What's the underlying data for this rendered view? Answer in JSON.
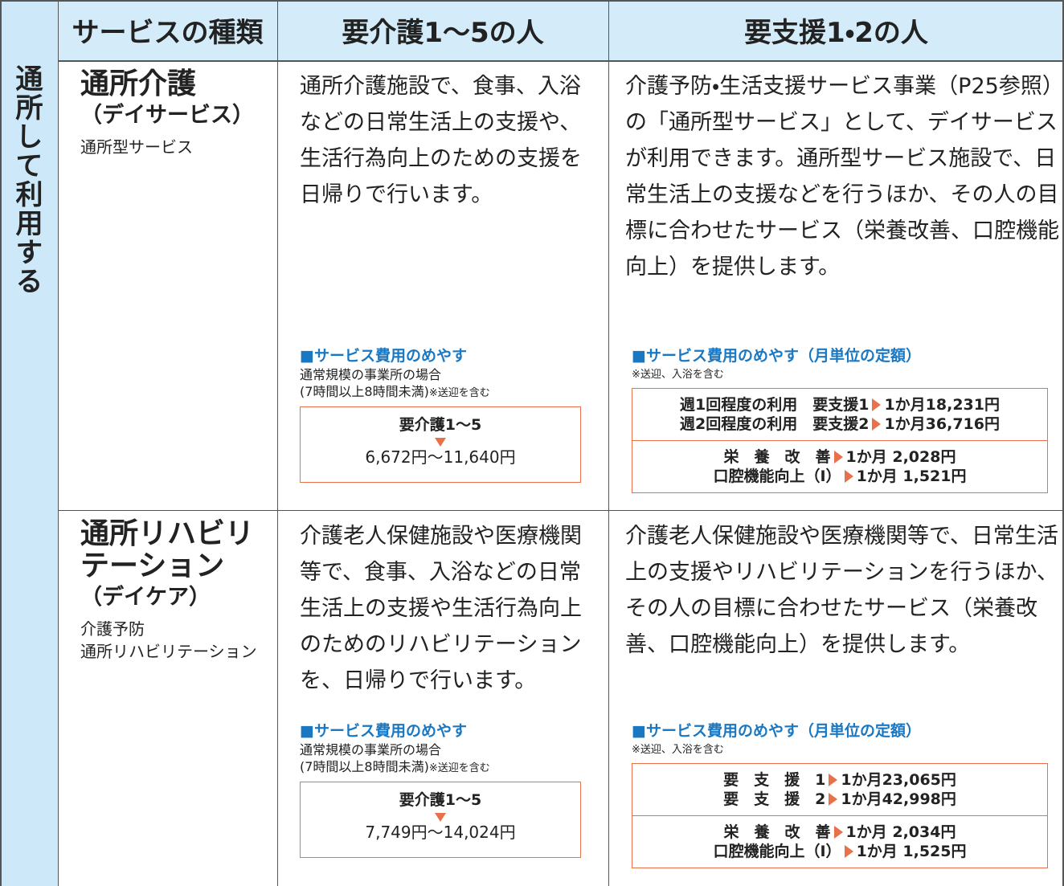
{
  "side_label": "通所して利用する",
  "header": [
    "サービスの種類",
    "要介護1～5の人",
    "要支援1・2の人"
  ],
  "rows": [
    {
      "service": {
        "name": "通所介護",
        "sub": "（デイサービス）",
        "notes": [
          "通所型サービス"
        ]
      },
      "care": {
        "text": "通所介護施設で、食事、入浴などの日常生活上の支援や、生活行為向上のための支援を日帰りで行います。",
        "cost_title": "■サービス費用のめやす",
        "cost_notes": [
          "通常規模の事業所の場合",
          "(7時間以上8時間未満)"
        ],
        "cost_small": "※送迎を含む",
        "box_label": "要介護1～5",
        "box_range": "6,672円～11,640円"
      },
      "support": {
        "text": "介護予防・生活支援サービス事業（P25参照）の「通所型サービス」として、デイサービスが利用できます。通所型サービス施設で、日常生活上の支援などを行うほか、その人の目標に合わせたサービス（栄養改善、口腔機能向上）を提供します。",
        "cost_title": "■サービス費用のめやす（月単位の定額）",
        "cost_small": "※送迎、入浴を含む",
        "box_top": [
          {
            "label": "週1回程度の利用　要支援1",
            "amount": "1か月18,231円"
          },
          {
            "label": "週2回程度の利用　要支援2",
            "amount": "1か月36,716円"
          }
        ],
        "box_bottom": [
          {
            "label": "栄　養　改　善",
            "amount": "1か月 2,028円"
          },
          {
            "label": "口腔機能向上（Ⅰ）",
            "amount": "1か月 1,521円"
          }
        ]
      }
    },
    {
      "service": {
        "name": "通所リハビリテーション",
        "sub": "（デイケア）",
        "notes": [
          "介護予防",
          "通所リハビリテーション"
        ]
      },
      "care": {
        "text": "介護老人保健施設や医療機関等で、食事、入浴などの日常生活上の支援や生活行為向上のためのリハビリテーションを、日帰りで行います。",
        "cost_title": "■サービス費用のめやす",
        "cost_notes": [
          "通常規模の事業所の場合",
          "(7時間以上8時間未満)"
        ],
        "cost_small": "※送迎を含む",
        "box_label": "要介護1～5",
        "box_range": "7,749円～14,024円"
      },
      "support": {
        "text": "介護老人保健施設や医療機関等で、日常生活上の支援やリハビリテーションを行うほか、その人の目標に合わせたサービス（栄養改善、口腔機能向上）を提供します。",
        "cost_title": "■サービス費用のめやす（月単位の定額）",
        "cost_small": "※送迎、入浴を含む",
        "box_top": [
          {
            "label": "要　支　援　1",
            "amount": "1か月23,065円"
          },
          {
            "label": "要　支　援　2",
            "amount": "1か月42,998円"
          }
        ],
        "box_bottom": [
          {
            "label": "栄　養　改　善",
            "amount": "1か月 2,034円"
          },
          {
            "label": "口腔機能向上（Ⅰ）",
            "amount": "1か月 1,525円"
          }
        ]
      }
    }
  ]
}
